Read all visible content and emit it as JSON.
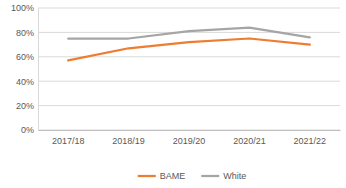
{
  "chart_data": {
    "type": "line",
    "categories": [
      "2017/18",
      "2018/19",
      "2019/20",
      "2020/21",
      "2021/22"
    ],
    "series": [
      {
        "name": "BAME",
        "color": "#ed7d31",
        "values": [
          57,
          67,
          72,
          75,
          70
        ]
      },
      {
        "name": "White",
        "color": "#a5a5a5",
        "values": [
          75,
          75,
          81,
          84,
          76
        ]
      }
    ],
    "ylim": [
      0,
      100
    ],
    "yticks": [
      {
        "value": 0,
        "label": "0%"
      },
      {
        "value": 20,
        "label": "20%"
      },
      {
        "value": 40,
        "label": "40%"
      },
      {
        "value": 60,
        "label": "60%"
      },
      {
        "value": 80,
        "label": "80%"
      },
      {
        "value": 100,
        "label": "100%"
      }
    ],
    "grid": true,
    "legend": "bottom"
  }
}
